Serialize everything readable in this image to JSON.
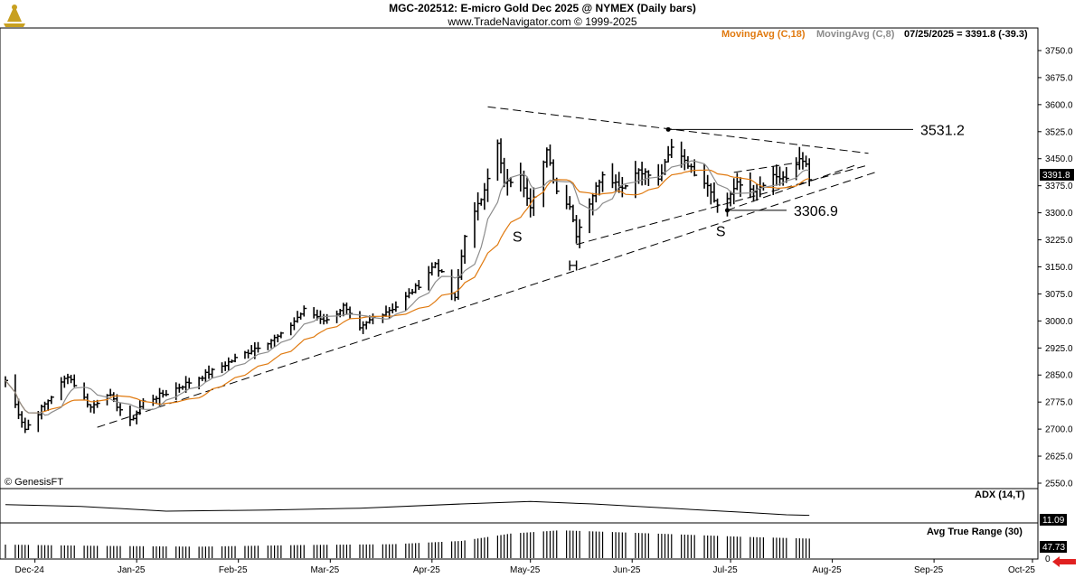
{
  "header": {
    "title": "MGC-202512:  E-micro Gold Dec 2025 @ NYMEX  (Daily bars)",
    "subtitle": "www.TradeNavigator.com © 1999-2025",
    "ma18_label": "MovingAvg (C,18)",
    "ma8_label": "MovingAvg (C,8)",
    "last_readout": "07/25/2025 = 3391.8 (-39.3)",
    "copyright": "© GenesisFT",
    "ma18_color": "#e07a10",
    "ma8_color": "#8c8c8c"
  },
  "last_price_label": "3391.8",
  "adx_panel": {
    "label": "ADX (14,T)",
    "value_label": "11.09"
  },
  "atr_panel": {
    "label": "Avg True Range (30)",
    "value_label": "47.73",
    "zero_label": "0"
  },
  "chart_data": [
    {
      "type": "ohlc",
      "title": "MGC-202512:  E-micro Gold Dec 2025 @ NYMEX  (Daily bars)",
      "ylim": [
        2550,
        3775
      ],
      "y_ticks": [
        2550,
        2625,
        2700,
        2775,
        2850,
        2925,
        3000,
        3075,
        3150,
        3225,
        3300,
        3375,
        3450,
        3525,
        3600,
        3675,
        3750
      ],
      "y_tick_labels": [
        "2550.0",
        "2625.0",
        "2700.0",
        "2775.0",
        "2850.0",
        "2925.0",
        "3000.0",
        "3075.0",
        "3150.0",
        "3225.0",
        "3300.0",
        "3375.0",
        "3450.0",
        "3525.0",
        "3600.0",
        "3675.0",
        "3750.0"
      ],
      "x_labels": [
        "Dec-24",
        "Jan-25",
        "Feb-25",
        "Mar-25",
        "Apr-25",
        "May-25",
        "Jun-25",
        "Jul-25",
        "Aug-25",
        "Sep-25",
        "Oct-25"
      ],
      "x_range": [
        "2024-11-22",
        "2025-10-01"
      ],
      "close_keypoints": [
        [
          "2024-11-22",
          2835
        ],
        [
          "2024-11-28",
          2700
        ],
        [
          "2024-12-05",
          2780
        ],
        [
          "2024-12-11",
          2850
        ],
        [
          "2024-12-18",
          2760
        ],
        [
          "2024-12-23",
          2800
        ],
        [
          "2024-12-30",
          2720
        ],
        [
          "2025-01-03",
          2775
        ],
        [
          "2025-01-10",
          2800
        ],
        [
          "2025-01-17",
          2830
        ],
        [
          "2025-01-24",
          2860
        ],
        [
          "2025-01-31",
          2895
        ],
        [
          "2025-02-07",
          2930
        ],
        [
          "2025-02-14",
          2960
        ],
        [
          "2025-02-21",
          3030
        ],
        [
          "2025-02-28",
          3000
        ],
        [
          "2025-03-05",
          3040
        ],
        [
          "2025-03-10",
          2975
        ],
        [
          "2025-03-14",
          3010
        ],
        [
          "2025-03-21",
          3040
        ],
        [
          "2025-03-28",
          3100
        ],
        [
          "2025-04-02",
          3160
        ],
        [
          "2025-04-04",
          3130
        ],
        [
          "2025-04-08",
          3060
        ],
        [
          "2025-04-11",
          3240
        ],
        [
          "2025-04-16",
          3340
        ],
        [
          "2025-04-21",
          3490
        ],
        [
          "2025-04-23",
          3380
        ],
        [
          "2025-04-28",
          3400
        ],
        [
          "2025-05-01",
          3320
        ],
        [
          "2025-05-06",
          3470
        ],
        [
          "2025-05-09",
          3360
        ],
        [
          "2025-05-13",
          3320
        ],
        [
          "2025-05-15",
          3240
        ],
        [
          "2025-05-20",
          3350
        ],
        [
          "2025-05-23",
          3410
        ],
        [
          "2025-05-29",
          3370
        ],
        [
          "2025-06-03",
          3420
        ],
        [
          "2025-06-09",
          3390
        ],
        [
          "2025-06-13",
          3480
        ],
        [
          "2025-06-16",
          3460
        ],
        [
          "2025-06-20",
          3410
        ],
        [
          "2025-06-24",
          3380
        ],
        [
          "2025-06-27",
          3320
        ],
        [
          "2025-06-30",
          3340
        ],
        [
          "2025-07-03",
          3380
        ],
        [
          "2025-07-09",
          3360
        ],
        [
          "2025-07-14",
          3400
        ],
        [
          "2025-07-18",
          3390
        ],
        [
          "2025-07-22",
          3450
        ],
        [
          "2025-07-23",
          3440
        ],
        [
          "2025-07-24",
          3431
        ],
        [
          "2025-07-25",
          3391.8
        ]
      ],
      "annotations": [
        {
          "label": "3531.2",
          "date": "2025-06-12",
          "value": 3531.2
        },
        {
          "label": "3306.9",
          "date": "2025-06-30",
          "value": 3306.9
        },
        {
          "label": "S",
          "date": "2025-04-27",
          "value": 3220
        },
        {
          "label": "H",
          "date": "2025-05-14",
          "value": 3140
        },
        {
          "label": "S",
          "date": "2025-06-28",
          "value": 3235
        }
      ],
      "trendlines": [
        {
          "from": [
            "2025-04-18",
            3594
          ],
          "to": [
            "2025-08-12",
            3465
          ]
        },
        {
          "from": [
            "2024-12-20",
            2705
          ],
          "to": [
            "2025-08-14",
            3412
          ]
        },
        {
          "from": [
            "2025-05-15",
            3212
          ],
          "to": [
            "2025-08-11",
            3430
          ]
        },
        {
          "from": [
            "2025-06-30",
            3307
          ],
          "to": [
            "2025-08-09",
            3435
          ]
        },
        {
          "from": [
            "2025-07-02",
            3412
          ],
          "to": [
            "2025-07-22",
            3440
          ]
        }
      ]
    },
    {
      "type": "line",
      "title": "ADX (14,T)",
      "series": [
        {
          "name": "ADX (14,T)",
          "last": 11.09
        }
      ],
      "points": [
        [
          "2024-11-22",
          29
        ],
        [
          "2024-12-15",
          26
        ],
        [
          "2025-01-10",
          18
        ],
        [
          "2025-02-10",
          20
        ],
        [
          "2025-03-10",
          23
        ],
        [
          "2025-04-10",
          30
        ],
        [
          "2025-05-01",
          34
        ],
        [
          "2025-05-20",
          30
        ],
        [
          "2025-06-15",
          22
        ],
        [
          "2025-07-05",
          16
        ],
        [
          "2025-07-18",
          12
        ],
        [
          "2025-07-25",
          11.09
        ]
      ],
      "ylim": [
        0,
        45
      ]
    },
    {
      "type": "bar",
      "title": "Avg True Range (30)",
      "series": [
        {
          "name": "Avg True Range (30)",
          "last": 47.73
        }
      ],
      "points": [
        [
          "2024-11-22",
          33
        ],
        [
          "2024-12-20",
          30
        ],
        [
          "2025-01-20",
          28
        ],
        [
          "2025-02-20",
          32
        ],
        [
          "2025-03-20",
          34
        ],
        [
          "2025-04-10",
          42
        ],
        [
          "2025-04-25",
          60
        ],
        [
          "2025-05-10",
          68
        ],
        [
          "2025-05-25",
          64
        ],
        [
          "2025-06-15",
          58
        ],
        [
          "2025-07-05",
          52
        ],
        [
          "2025-07-25",
          47.73
        ]
      ],
      "ylim": [
        0,
        75
      ]
    }
  ]
}
